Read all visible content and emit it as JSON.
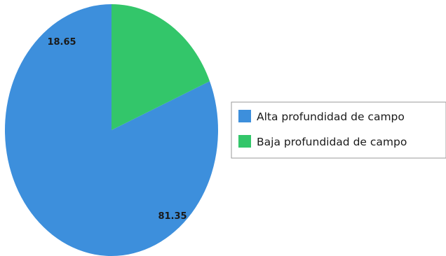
{
  "chart_data": {
    "type": "pie",
    "title": "",
    "slices": [
      {
        "label": "Alta profundidad de campo",
        "value": 81.35,
        "value_label": "81.35",
        "color": "#3d8fdc"
      },
      {
        "label": "Baja profundidad de campo",
        "value": 18.65,
        "value_label": "18.65",
        "color": "#33c66a"
      }
    ],
    "start_direction": "top",
    "order": "counterclockwise",
    "legend": {
      "position": "right"
    }
  }
}
